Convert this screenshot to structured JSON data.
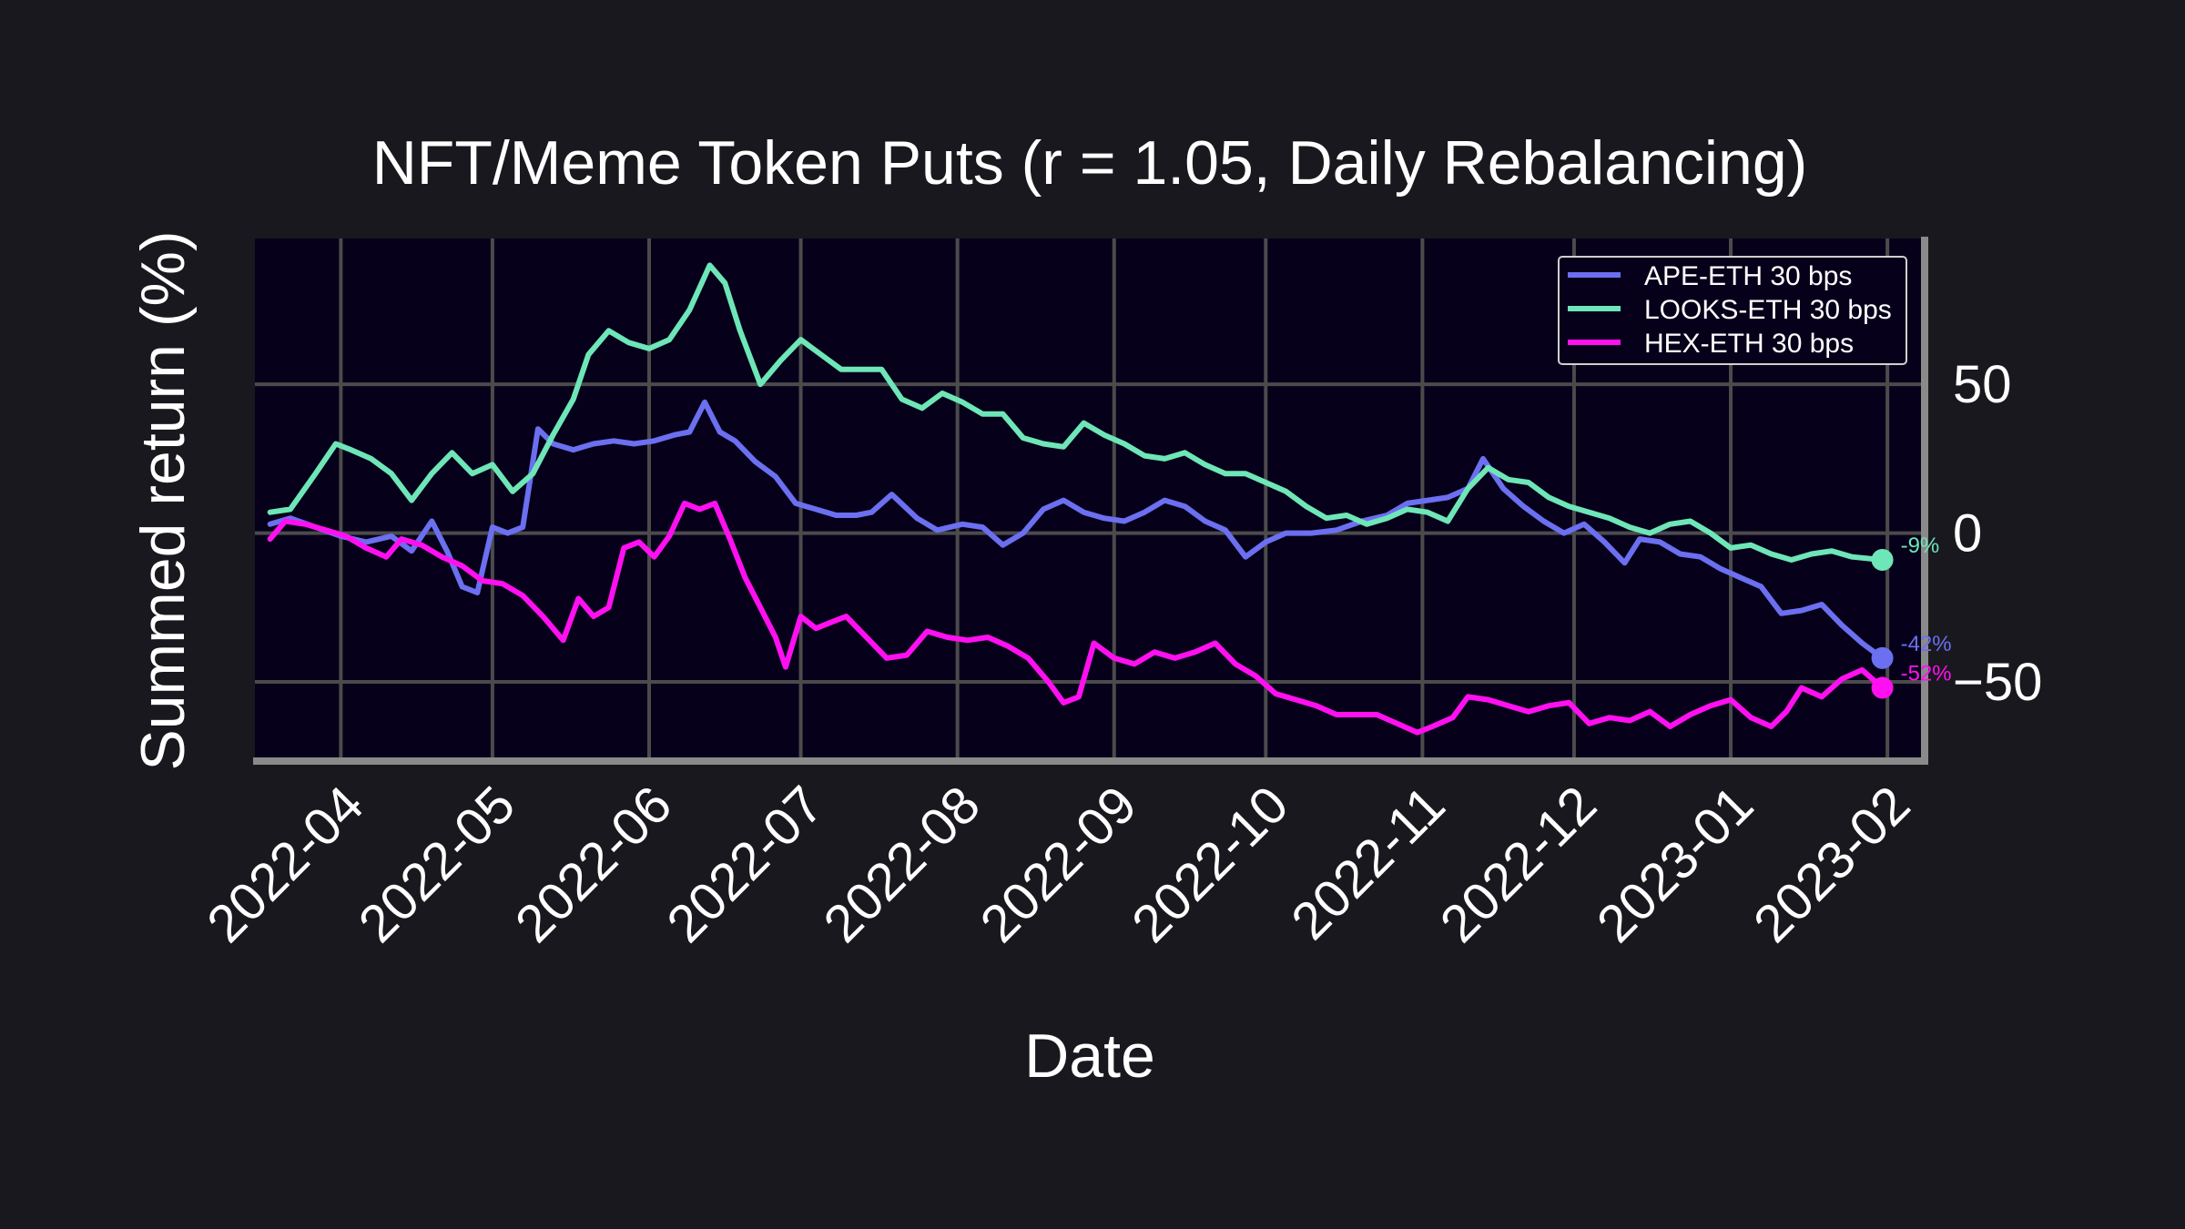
{
  "chart_data": {
    "type": "line",
    "title": "NFT/Meme Token Puts (r = 1.05, Daily Rebalancing)",
    "xlabel": "Date",
    "ylabel": "Summed return (%)",
    "x_ticks": [
      "2022-04",
      "2022-05",
      "2022-06",
      "2022-07",
      "2022-08",
      "2022-09",
      "2022-10",
      "2022-11",
      "2022-12",
      "2023-01",
      "2023-02"
    ],
    "y_ticks": [
      -50,
      0,
      50
    ],
    "y_tick_labels": [
      "−50",
      "0",
      "50"
    ],
    "xlim": [
      "2022-03-15",
      "2023-02-08"
    ],
    "ylim": [
      -76,
      99
    ],
    "grid": true,
    "y_axis_side": "right",
    "legend_position": "top-right",
    "series": [
      {
        "name": "APE-ETH 30 bps",
        "color": "#6b6ff0",
        "end_label": "-42%",
        "points": [
          [
            "2022-03-18",
            3
          ],
          [
            "2022-03-22",
            5
          ],
          [
            "2022-03-27",
            2
          ],
          [
            "2022-04-01",
            -1
          ],
          [
            "2022-04-06",
            -3
          ],
          [
            "2022-04-11",
            -1
          ],
          [
            "2022-04-15",
            -6
          ],
          [
            "2022-04-19",
            4
          ],
          [
            "2022-04-22",
            -6
          ],
          [
            "2022-04-25",
            -18
          ],
          [
            "2022-04-28",
            -20
          ],
          [
            "2022-05-01",
            2
          ],
          [
            "2022-05-04",
            0
          ],
          [
            "2022-05-07",
            2
          ],
          [
            "2022-05-10",
            35
          ],
          [
            "2022-05-13",
            30
          ],
          [
            "2022-05-17",
            28
          ],
          [
            "2022-05-21",
            30
          ],
          [
            "2022-05-25",
            31
          ],
          [
            "2022-05-29",
            30
          ],
          [
            "2022-06-02",
            31
          ],
          [
            "2022-06-06",
            33
          ],
          [
            "2022-06-09",
            34
          ],
          [
            "2022-06-12",
            44
          ],
          [
            "2022-06-15",
            34
          ],
          [
            "2022-06-18",
            31
          ],
          [
            "2022-06-22",
            24
          ],
          [
            "2022-06-26",
            19
          ],
          [
            "2022-06-30",
            10
          ],
          [
            "2022-07-04",
            8
          ],
          [
            "2022-07-08",
            6
          ],
          [
            "2022-07-12",
            6
          ],
          [
            "2022-07-15",
            7
          ],
          [
            "2022-07-19",
            13
          ],
          [
            "2022-07-24",
            5
          ],
          [
            "2022-07-28",
            1
          ],
          [
            "2022-08-02",
            3
          ],
          [
            "2022-08-06",
            2
          ],
          [
            "2022-08-10",
            -4
          ],
          [
            "2022-08-14",
            0
          ],
          [
            "2022-08-18",
            8
          ],
          [
            "2022-08-22",
            11
          ],
          [
            "2022-08-26",
            7
          ],
          [
            "2022-08-30",
            5
          ],
          [
            "2022-09-03",
            4
          ],
          [
            "2022-09-07",
            7
          ],
          [
            "2022-09-11",
            11
          ],
          [
            "2022-09-15",
            9
          ],
          [
            "2022-09-19",
            4
          ],
          [
            "2022-09-23",
            1
          ],
          [
            "2022-09-27",
            -8
          ],
          [
            "2022-10-01",
            -3
          ],
          [
            "2022-10-05",
            0
          ],
          [
            "2022-10-10",
            0
          ],
          [
            "2022-10-15",
            1
          ],
          [
            "2022-10-20",
            4
          ],
          [
            "2022-10-25",
            6
          ],
          [
            "2022-10-29",
            10
          ],
          [
            "2022-11-02",
            11
          ],
          [
            "2022-11-06",
            12
          ],
          [
            "2022-11-10",
            15
          ],
          [
            "2022-11-13",
            25
          ],
          [
            "2022-11-17",
            15
          ],
          [
            "2022-11-21",
            9
          ],
          [
            "2022-11-25",
            4
          ],
          [
            "2022-11-29",
            0
          ],
          [
            "2022-12-03",
            3
          ],
          [
            "2022-12-07",
            -3
          ],
          [
            "2022-12-11",
            -10
          ],
          [
            "2022-12-14",
            -2
          ],
          [
            "2022-12-18",
            -3
          ],
          [
            "2022-12-22",
            -7
          ],
          [
            "2022-12-26",
            -8
          ],
          [
            "2022-12-30",
            -12
          ],
          [
            "2023-01-03",
            -15
          ],
          [
            "2023-01-07",
            -18
          ],
          [
            "2023-01-11",
            -27
          ],
          [
            "2023-01-15",
            -26
          ],
          [
            "2023-01-19",
            -24
          ],
          [
            "2023-01-23",
            -31
          ],
          [
            "2023-01-27",
            -37
          ],
          [
            "2023-01-31",
            -42
          ]
        ]
      },
      {
        "name": "LOOKS-ETH 30 bps",
        "color": "#6ee6b8",
        "end_label": "-9%",
        "points": [
          [
            "2022-03-18",
            7
          ],
          [
            "2022-03-22",
            8
          ],
          [
            "2022-03-27",
            20
          ],
          [
            "2022-03-31",
            30
          ],
          [
            "2022-04-03",
            28
          ],
          [
            "2022-04-07",
            25
          ],
          [
            "2022-04-11",
            20
          ],
          [
            "2022-04-15",
            11
          ],
          [
            "2022-04-19",
            20
          ],
          [
            "2022-04-23",
            27
          ],
          [
            "2022-04-27",
            20
          ],
          [
            "2022-05-01",
            23
          ],
          [
            "2022-05-05",
            14
          ],
          [
            "2022-05-09",
            20
          ],
          [
            "2022-05-13",
            33
          ],
          [
            "2022-05-17",
            45
          ],
          [
            "2022-05-20",
            60
          ],
          [
            "2022-05-24",
            68
          ],
          [
            "2022-05-28",
            64
          ],
          [
            "2022-06-01",
            62
          ],
          [
            "2022-06-05",
            65
          ],
          [
            "2022-06-09",
            75
          ],
          [
            "2022-06-13",
            90
          ],
          [
            "2022-06-16",
            84
          ],
          [
            "2022-06-19",
            68
          ],
          [
            "2022-06-23",
            50
          ],
          [
            "2022-06-27",
            58
          ],
          [
            "2022-07-01",
            65
          ],
          [
            "2022-07-05",
            60
          ],
          [
            "2022-07-09",
            55
          ],
          [
            "2022-07-13",
            55
          ],
          [
            "2022-07-17",
            55
          ],
          [
            "2022-07-21",
            45
          ],
          [
            "2022-07-25",
            42
          ],
          [
            "2022-07-29",
            47
          ],
          [
            "2022-08-02",
            44
          ],
          [
            "2022-08-06",
            40
          ],
          [
            "2022-08-10",
            40
          ],
          [
            "2022-08-14",
            32
          ],
          [
            "2022-08-18",
            30
          ],
          [
            "2022-08-22",
            29
          ],
          [
            "2022-08-26",
            37
          ],
          [
            "2022-08-30",
            33
          ],
          [
            "2022-09-03",
            30
          ],
          [
            "2022-09-07",
            26
          ],
          [
            "2022-09-11",
            25
          ],
          [
            "2022-09-15",
            27
          ],
          [
            "2022-09-19",
            23
          ],
          [
            "2022-09-23",
            20
          ],
          [
            "2022-09-27",
            20
          ],
          [
            "2022-10-01",
            17
          ],
          [
            "2022-10-05",
            14
          ],
          [
            "2022-10-09",
            9
          ],
          [
            "2022-10-13",
            5
          ],
          [
            "2022-10-17",
            6
          ],
          [
            "2022-10-21",
            3
          ],
          [
            "2022-10-25",
            5
          ],
          [
            "2022-10-29",
            8
          ],
          [
            "2022-11-02",
            7
          ],
          [
            "2022-11-06",
            4
          ],
          [
            "2022-11-10",
            15
          ],
          [
            "2022-11-14",
            22
          ],
          [
            "2022-11-18",
            18
          ],
          [
            "2022-11-22",
            17
          ],
          [
            "2022-11-26",
            12
          ],
          [
            "2022-11-30",
            9
          ],
          [
            "2022-12-04",
            7
          ],
          [
            "2022-12-08",
            5
          ],
          [
            "2022-12-12",
            2
          ],
          [
            "2022-12-16",
            0
          ],
          [
            "2022-12-20",
            3
          ],
          [
            "2022-12-24",
            4
          ],
          [
            "2022-12-28",
            0
          ],
          [
            "2023-01-01",
            -5
          ],
          [
            "2023-01-05",
            -4
          ],
          [
            "2023-01-09",
            -7
          ],
          [
            "2023-01-13",
            -9
          ],
          [
            "2023-01-17",
            -7
          ],
          [
            "2023-01-21",
            -6
          ],
          [
            "2023-01-25",
            -8
          ],
          [
            "2023-01-31",
            -9
          ]
        ]
      },
      {
        "name": "HEX-ETH 30 bps",
        "color": "#ff10f0",
        "end_label": "-52%",
        "points": [
          [
            "2022-03-18",
            -2
          ],
          [
            "2022-03-21",
            4
          ],
          [
            "2022-03-25",
            3
          ],
          [
            "2022-03-29",
            1
          ],
          [
            "2022-04-02",
            -1
          ],
          [
            "2022-04-06",
            -5
          ],
          [
            "2022-04-10",
            -8
          ],
          [
            "2022-04-13",
            -2
          ],
          [
            "2022-04-17",
            -4
          ],
          [
            "2022-04-21",
            -8
          ],
          [
            "2022-04-25",
            -11
          ],
          [
            "2022-04-29",
            -16
          ],
          [
            "2022-05-03",
            -17
          ],
          [
            "2022-05-07",
            -21
          ],
          [
            "2022-05-11",
            -28
          ],
          [
            "2022-05-15",
            -36
          ],
          [
            "2022-05-18",
            -22
          ],
          [
            "2022-05-21",
            -28
          ],
          [
            "2022-05-24",
            -25
          ],
          [
            "2022-05-27",
            -5
          ],
          [
            "2022-05-30",
            -3
          ],
          [
            "2022-06-02",
            -8
          ],
          [
            "2022-06-05",
            -1
          ],
          [
            "2022-06-08",
            10
          ],
          [
            "2022-06-11",
            8
          ],
          [
            "2022-06-14",
            10
          ],
          [
            "2022-06-17",
            -2
          ],
          [
            "2022-06-20",
            -15
          ],
          [
            "2022-06-23",
            -25
          ],
          [
            "2022-06-26",
            -35
          ],
          [
            "2022-06-28",
            -45
          ],
          [
            "2022-07-01",
            -28
          ],
          [
            "2022-07-04",
            -32
          ],
          [
            "2022-07-07",
            -30
          ],
          [
            "2022-07-10",
            -28
          ],
          [
            "2022-07-14",
            -35
          ],
          [
            "2022-07-18",
            -42
          ],
          [
            "2022-07-22",
            -41
          ],
          [
            "2022-07-26",
            -33
          ],
          [
            "2022-07-30",
            -35
          ],
          [
            "2022-08-03",
            -36
          ],
          [
            "2022-08-07",
            -35
          ],
          [
            "2022-08-11",
            -38
          ],
          [
            "2022-08-15",
            -42
          ],
          [
            "2022-08-19",
            -50
          ],
          [
            "2022-08-22",
            -57
          ],
          [
            "2022-08-25",
            -55
          ],
          [
            "2022-08-28",
            -37
          ],
          [
            "2022-09-01",
            -42
          ],
          [
            "2022-09-05",
            -44
          ],
          [
            "2022-09-09",
            -40
          ],
          [
            "2022-09-13",
            -42
          ],
          [
            "2022-09-17",
            -40
          ],
          [
            "2022-09-21",
            -37
          ],
          [
            "2022-09-25",
            -44
          ],
          [
            "2022-09-29",
            -48
          ],
          [
            "2022-10-03",
            -54
          ],
          [
            "2022-10-07",
            -56
          ],
          [
            "2022-10-11",
            -58
          ],
          [
            "2022-10-15",
            -61
          ],
          [
            "2022-10-19",
            -61
          ],
          [
            "2022-10-23",
            -61
          ],
          [
            "2022-10-27",
            -64
          ],
          [
            "2022-10-31",
            -67
          ],
          [
            "2022-11-03",
            -65
          ],
          [
            "2022-11-07",
            -62
          ],
          [
            "2022-11-10",
            -55
          ],
          [
            "2022-11-14",
            -56
          ],
          [
            "2022-11-18",
            -58
          ],
          [
            "2022-11-22",
            -60
          ],
          [
            "2022-11-26",
            -58
          ],
          [
            "2022-11-30",
            -57
          ],
          [
            "2022-12-04",
            -64
          ],
          [
            "2022-12-08",
            -62
          ],
          [
            "2022-12-12",
            -63
          ],
          [
            "2022-12-16",
            -60
          ],
          [
            "2022-12-20",
            -65
          ],
          [
            "2022-12-24",
            -61
          ],
          [
            "2022-12-28",
            -58
          ],
          [
            "2023-01-01",
            -56
          ],
          [
            "2023-01-05",
            -62
          ],
          [
            "2023-01-09",
            -65
          ],
          [
            "2023-01-12",
            -60
          ],
          [
            "2023-01-15",
            -52
          ],
          [
            "2023-01-19",
            -55
          ],
          [
            "2023-01-23",
            -49
          ],
          [
            "2023-01-27",
            -46
          ],
          [
            "2023-01-31",
            -52
          ]
        ]
      }
    ]
  }
}
